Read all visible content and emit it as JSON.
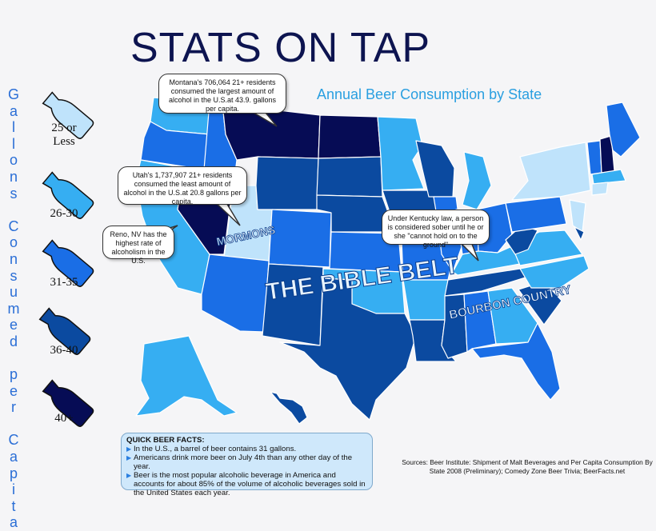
{
  "title": "STATS ON TAP",
  "subtitle": "Annual Beer Consumption by State",
  "vertical_label_letters": [
    "G",
    "a",
    "l",
    "l",
    "o",
    "n",
    "s",
    " ",
    "C",
    "o",
    "n",
    "s",
    "u",
    "m",
    "e",
    "d",
    " ",
    "p",
    "e",
    "r",
    " ",
    "C",
    "a",
    "p",
    "i",
    "t",
    "a"
  ],
  "legend": [
    {
      "label": "25 or Less",
      "color": "#bfe3fb"
    },
    {
      "label": "26-30",
      "color": "#36aef2"
    },
    {
      "label": "31-35",
      "color": "#1a6ee6"
    },
    {
      "label": "36-40",
      "color": "#0b4aa0"
    },
    {
      "label": "40+",
      "color": "#060c55"
    }
  ],
  "callouts": {
    "montana": "Montana's 706,064 21+ residents consumed the largest amount of alcohol in the U.S.at 43.9. gallons per capita.",
    "utah": "Utah's 1,737,907 21+ residents consumed the least amount of alcohol in the U.S.at 20.8 gallons per capita.",
    "reno": "Reno, NV has the highest rate of alcoholism in the U.S.",
    "kentucky": "Under Kentucky law, a person is considered sober until he or she \"cannot hold on to the ground\""
  },
  "map_labels": {
    "mormons": "MORMONS",
    "bible_belt": "THE BIBLE BELT",
    "bourbon": "BOURBON COUNTRY"
  },
  "facts": {
    "header": "QUICK BEER FACTS:",
    "items": [
      "In the U.S., a barrel of beer contains 31 gallons.",
      "Americans drink more beer on July 4th than any other day of the year.",
      "Beer is the most popular alcoholic beverage in America and accounts for about 85% of the volume of alcoholic beverages sold in the United States each year."
    ]
  },
  "sources": "Sources: Beer Institute: Shipment of Malt Beverages and Per Capita Consumption By State 2008 (Preliminary); Comedy Zone Beer Trivia; BeerFacts.net",
  "colors": {
    "c1": "#bfe3fb",
    "c2": "#36aef2",
    "c3": "#1a6ee6",
    "c4": "#0b4aa0",
    "c5": "#060c55"
  }
}
